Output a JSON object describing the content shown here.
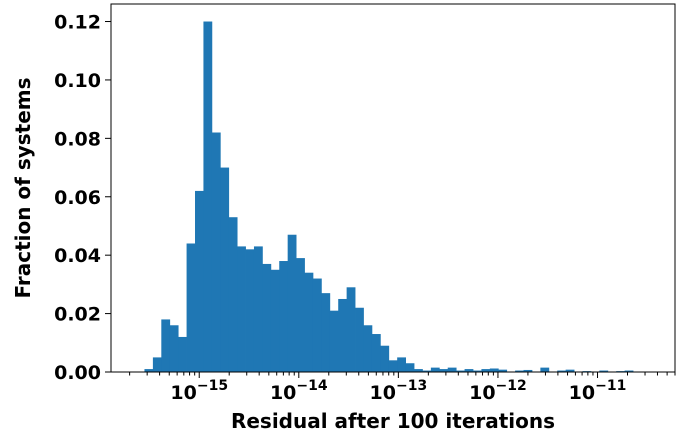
{
  "chart_data": {
    "type": "bar",
    "title": "",
    "xlabel": "Residual after 100 iterations",
    "ylabel": "Fraction of systems",
    "x_scale": "log",
    "x_lim": [
      1.3e-16,
      6e-11
    ],
    "ylim": [
      0,
      0.126
    ],
    "y_ticks": [
      "0.00",
      "0.02",
      "0.04",
      "0.06",
      "0.08",
      "0.10",
      "0.12"
    ],
    "x_ticks": [
      {
        "base": "10",
        "exp": "−15",
        "value": 1e-15
      },
      {
        "base": "10",
        "exp": "−14",
        "value": 1e-14
      },
      {
        "base": "10",
        "exp": "−13",
        "value": 1e-13
      },
      {
        "base": "10",
        "exp": "−12",
        "value": 1e-12
      },
      {
        "base": "10",
        "exp": "−11",
        "value": 1e-11
      }
    ],
    "grid": false,
    "color": "#1f77b4",
    "bins_log10": {
      "start": -15.55,
      "width": 0.0846
    },
    "values": [
      0.001,
      0.005,
      0.018,
      0.016,
      0.012,
      0.044,
      0.062,
      0.12,
      0.082,
      0.07,
      0.053,
      0.043,
      0.042,
      0.043,
      0.037,
      0.035,
      0.038,
      0.047,
      0.039,
      0.034,
      0.032,
      0.027,
      0.021,
      0.025,
      0.029,
      0.022,
      0.016,
      0.013,
      0.009,
      0.004,
      0.005,
      0.003,
      0.001,
      0.0005,
      0.0015,
      0.001,
      0.0015,
      0.0005,
      0.001,
      0.0005,
      0.001,
      0.0012,
      0.0008,
      0,
      0.0005,
      0.0007,
      0,
      0.0015,
      0,
      0.0005,
      0.0008,
      0,
      0.0003,
      0,
      0.0005,
      0,
      0.0003,
      0.0005
    ]
  }
}
